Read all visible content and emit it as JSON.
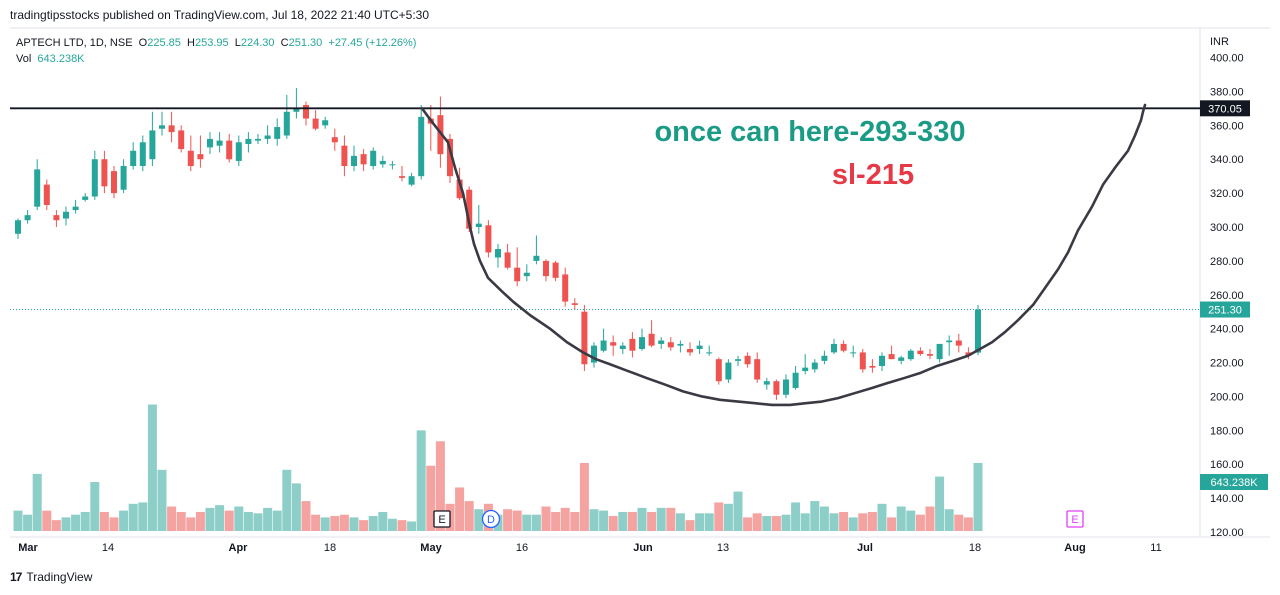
{
  "header": {
    "publisher": "tradingtipsstocks published on TradingView.com, Jul 18, 2022 21:40 UTC+5:30"
  },
  "legend": {
    "symbol": "APTECH LTD, 1D, NSE",
    "open_label": "O",
    "open": "225.85",
    "high_label": "H",
    "high": "253.95",
    "low_label": "L",
    "low": "224.30",
    "close_label": "C",
    "close": "251.30",
    "change": "+27.45 (+12.26%)",
    "volume_label": "Vol",
    "volume": "643.238K"
  },
  "footer": {
    "brand": "TradingView"
  },
  "chart_data": {
    "type": "candlestick",
    "currency": "INR",
    "y_ticks": [
      "400.00",
      "380.00",
      "360.00",
      "340.00",
      "320.00",
      "300.00",
      "280.00",
      "260.00",
      "240.00",
      "220.00",
      "200.00",
      "180.00",
      "160.00",
      "140.00",
      "120.00"
    ],
    "x_ticks": [
      "Mar",
      "14",
      "Apr",
      "18",
      "May",
      "16",
      "Jun",
      "13",
      "Jul",
      "18",
      "Aug",
      "11"
    ],
    "resistance_line": {
      "price": 370.05,
      "label": "370.05"
    },
    "last_price": {
      "price": 251.3,
      "label": "251.30"
    },
    "volume_badge": "643.238K",
    "annotations": {
      "target": "once can here-293-330",
      "stoploss": "sl-215"
    },
    "event_markers": [
      "E",
      "D",
      "E"
    ],
    "colors": {
      "up": "#26a69a",
      "down": "#ef5350",
      "up_volume": "#8dcfc8",
      "down_volume": "#f5a3a1",
      "target_text": "#1a9b86",
      "sl_text": "#e53946",
      "line": "#131722"
    },
    "candles": [
      {
        "o": 296,
        "h": 305,
        "l": 293,
        "c": 304
      },
      {
        "o": 304,
        "h": 310,
        "l": 302,
        "c": 307
      },
      {
        "o": 312,
        "h": 340,
        "l": 310,
        "c": 334
      },
      {
        "o": 325,
        "h": 328,
        "l": 310,
        "c": 313
      },
      {
        "o": 307,
        "h": 310,
        "l": 300,
        "c": 304
      },
      {
        "o": 305,
        "h": 312,
        "l": 301,
        "c": 309
      },
      {
        "o": 310,
        "h": 316,
        "l": 308,
        "c": 312
      },
      {
        "o": 316,
        "h": 320,
        "l": 315,
        "c": 318
      },
      {
        "o": 318,
        "h": 345,
        "l": 316,
        "c": 340
      },
      {
        "o": 340,
        "h": 345,
        "l": 320,
        "c": 324
      },
      {
        "o": 333,
        "h": 336,
        "l": 317,
        "c": 320
      },
      {
        "o": 322,
        "h": 340,
        "l": 320,
        "c": 336
      },
      {
        "o": 336,
        "h": 350,
        "l": 334,
        "c": 345
      },
      {
        "o": 336,
        "h": 354,
        "l": 333,
        "c": 350
      },
      {
        "o": 340,
        "h": 368,
        "l": 336,
        "c": 357
      },
      {
        "o": 358,
        "h": 368,
        "l": 354,
        "c": 360
      },
      {
        "o": 360,
        "h": 368,
        "l": 350,
        "c": 356
      },
      {
        "o": 357,
        "h": 360,
        "l": 344,
        "c": 346
      },
      {
        "o": 345,
        "h": 354,
        "l": 333,
        "c": 336
      },
      {
        "o": 343,
        "h": 354,
        "l": 335,
        "c": 340
      },
      {
        "o": 347,
        "h": 356,
        "l": 343,
        "c": 352
      },
      {
        "o": 348,
        "h": 356,
        "l": 344,
        "c": 351
      },
      {
        "o": 351,
        "h": 355,
        "l": 338,
        "c": 340
      },
      {
        "o": 339,
        "h": 354,
        "l": 336,
        "c": 350
      },
      {
        "o": 349,
        "h": 356,
        "l": 344,
        "c": 352
      },
      {
        "o": 351,
        "h": 355,
        "l": 349,
        "c": 352
      },
      {
        "o": 352,
        "h": 360,
        "l": 349,
        "c": 354
      },
      {
        "o": 352,
        "h": 364,
        "l": 348,
        "c": 359
      },
      {
        "o": 354,
        "h": 378,
        "l": 352,
        "c": 368
      },
      {
        "o": 368,
        "h": 382,
        "l": 364,
        "c": 370
      },
      {
        "o": 372,
        "h": 374,
        "l": 360,
        "c": 364
      },
      {
        "o": 364,
        "h": 369,
        "l": 357,
        "c": 358
      },
      {
        "o": 360,
        "h": 365,
        "l": 358,
        "c": 363
      },
      {
        "o": 353,
        "h": 358,
        "l": 345,
        "c": 350
      },
      {
        "o": 348,
        "h": 354,
        "l": 330,
        "c": 336
      },
      {
        "o": 336,
        "h": 348,
        "l": 333,
        "c": 342
      },
      {
        "o": 343,
        "h": 346,
        "l": 333,
        "c": 337
      },
      {
        "o": 336,
        "h": 347,
        "l": 334,
        "c": 345
      },
      {
        "o": 337,
        "h": 342,
        "l": 335,
        "c": 339
      },
      {
        "o": 337,
        "h": 339,
        "l": 334,
        "c": 337
      },
      {
        "o": 330,
        "h": 336,
        "l": 327,
        "c": 329
      },
      {
        "o": 325,
        "h": 332,
        "l": 324,
        "c": 330
      },
      {
        "o": 330,
        "h": 372,
        "l": 328,
        "c": 365
      },
      {
        "o": 364,
        "h": 372,
        "l": 345,
        "c": 361
      },
      {
        "o": 366,
        "h": 377,
        "l": 335,
        "c": 343
      },
      {
        "o": 352,
        "h": 355,
        "l": 326,
        "c": 330
      },
      {
        "o": 328,
        "h": 335,
        "l": 316,
        "c": 317
      },
      {
        "o": 322,
        "h": 324,
        "l": 297,
        "c": 299
      },
      {
        "o": 300,
        "h": 313,
        "l": 296,
        "c": 302
      },
      {
        "o": 301,
        "h": 304,
        "l": 282,
        "c": 285
      },
      {
        "o": 282,
        "h": 290,
        "l": 276,
        "c": 287
      },
      {
        "o": 285,
        "h": 290,
        "l": 275,
        "c": 276
      },
      {
        "o": 276,
        "h": 288,
        "l": 265,
        "c": 268
      },
      {
        "o": 271,
        "h": 278,
        "l": 268,
        "c": 273
      },
      {
        "o": 280,
        "h": 295,
        "l": 278,
        "c": 283
      },
      {
        "o": 280,
        "h": 281,
        "l": 268,
        "c": 271
      },
      {
        "o": 279,
        "h": 280,
        "l": 268,
        "c": 270
      },
      {
        "o": 272,
        "h": 276,
        "l": 253,
        "c": 256
      },
      {
        "o": 255,
        "h": 258,
        "l": 251,
        "c": 254
      },
      {
        "o": 250,
        "h": 254,
        "l": 215,
        "c": 219
      },
      {
        "o": 220,
        "h": 232,
        "l": 217,
        "c": 230
      },
      {
        "o": 227,
        "h": 240,
        "l": 226,
        "c": 233
      },
      {
        "o": 232,
        "h": 236,
        "l": 224,
        "c": 230
      },
      {
        "o": 228,
        "h": 232,
        "l": 225,
        "c": 230
      },
      {
        "o": 234,
        "h": 238,
        "l": 223,
        "c": 227
      },
      {
        "o": 228,
        "h": 240,
        "l": 227,
        "c": 235
      },
      {
        "o": 237,
        "h": 245,
        "l": 229,
        "c": 230
      },
      {
        "o": 231,
        "h": 235,
        "l": 228,
        "c": 233
      },
      {
        "o": 232,
        "h": 235,
        "l": 227,
        "c": 229
      },
      {
        "o": 230,
        "h": 233,
        "l": 226,
        "c": 231
      },
      {
        "o": 228,
        "h": 232,
        "l": 224,
        "c": 226
      },
      {
        "o": 228,
        "h": 233,
        "l": 225,
        "c": 230
      },
      {
        "o": 226,
        "h": 230,
        "l": 224,
        "c": 226
      },
      {
        "o": 222,
        "h": 223,
        "l": 207,
        "c": 209
      },
      {
        "o": 210,
        "h": 222,
        "l": 208,
        "c": 220
      },
      {
        "o": 221,
        "h": 224,
        "l": 218,
        "c": 222
      },
      {
        "o": 224,
        "h": 226,
        "l": 217,
        "c": 219
      },
      {
        "o": 222,
        "h": 226,
        "l": 208,
        "c": 210
      },
      {
        "o": 207,
        "h": 211,
        "l": 204,
        "c": 209
      },
      {
        "o": 209,
        "h": 210,
        "l": 198,
        "c": 201
      },
      {
        "o": 201,
        "h": 213,
        "l": 199,
        "c": 210
      },
      {
        "o": 205,
        "h": 218,
        "l": 204,
        "c": 214
      },
      {
        "o": 215,
        "h": 225,
        "l": 213,
        "c": 217
      },
      {
        "o": 216,
        "h": 222,
        "l": 214,
        "c": 220
      },
      {
        "o": 221,
        "h": 227,
        "l": 219,
        "c": 224
      },
      {
        "o": 226,
        "h": 234,
        "l": 225,
        "c": 231
      },
      {
        "o": 231,
        "h": 233,
        "l": 226,
        "c": 227
      },
      {
        "o": 226,
        "h": 230,
        "l": 223,
        "c": 226
      },
      {
        "o": 226,
        "h": 228,
        "l": 214,
        "c": 216
      },
      {
        "o": 218,
        "h": 222,
        "l": 214,
        "c": 217
      },
      {
        "o": 218,
        "h": 226,
        "l": 215,
        "c": 224
      },
      {
        "o": 225,
        "h": 230,
        "l": 222,
        "c": 222
      },
      {
        "o": 221,
        "h": 224,
        "l": 219,
        "c": 223
      },
      {
        "o": 222,
        "h": 228,
        "l": 221,
        "c": 227
      },
      {
        "o": 227,
        "h": 229,
        "l": 224,
        "c": 225
      },
      {
        "o": 225,
        "h": 228,
        "l": 222,
        "c": 224
      },
      {
        "o": 222,
        "h": 231,
        "l": 220,
        "c": 231
      },
      {
        "o": 232,
        "h": 236,
        "l": 224,
        "c": 233
      },
      {
        "o": 233,
        "h": 237,
        "l": 226,
        "c": 230
      },
      {
        "o": 226,
        "h": 229,
        "l": 222,
        "c": 224
      },
      {
        "o": 225.85,
        "h": 253.95,
        "l": 224.3,
        "c": 251.3
      }
    ],
    "volumes": [
      15,
      12,
      42,
      15,
      8,
      10,
      12,
      14,
      36,
      14,
      10,
      15,
      20,
      21,
      93,
      45,
      18,
      14,
      10,
      14,
      17,
      19,
      15,
      18,
      14,
      13,
      17,
      15,
      45,
      35,
      22,
      12,
      10,
      11,
      12,
      10,
      8,
      11,
      14,
      9,
      8,
      7,
      74,
      48,
      66,
      20,
      32,
      22,
      16,
      20,
      12,
      16,
      15,
      12,
      12,
      18,
      14,
      17,
      14,
      50,
      16,
      15,
      11,
      14,
      14,
      17,
      14,
      17,
      17,
      13,
      8,
      13,
      13,
      21,
      20,
      29,
      10,
      13,
      11,
      11,
      12,
      21,
      13,
      22,
      18,
      13,
      14,
      10,
      13,
      14,
      20,
      10,
      18,
      15,
      12,
      18,
      40,
      16,
      12,
      10,
      50
    ],
    "curve_points": [
      [
        370,
        422
      ],
      [
        362,
        432
      ],
      [
        350,
        448
      ],
      [
        335,
        455
      ],
      [
        320,
        463
      ],
      [
        300,
        470
      ],
      [
        290,
        474
      ],
      [
        280,
        480
      ],
      [
        270,
        488
      ],
      [
        262,
        502
      ],
      [
        256,
        513
      ],
      [
        248,
        530
      ],
      [
        240,
        550
      ],
      [
        232,
        567
      ],
      [
        226,
        583
      ],
      [
        222,
        596
      ],
      [
        219,
        610
      ],
      [
        215,
        628
      ],
      [
        211,
        646
      ],
      [
        207,
        665
      ],
      [
        203,
        683
      ],
      [
        200,
        702
      ],
      [
        198,
        720
      ],
      [
        197,
        738
      ],
      [
        196,
        755
      ],
      [
        195,
        772
      ],
      [
        195,
        790
      ],
      [
        196,
        806
      ],
      [
        197,
        822
      ],
      [
        199,
        838
      ],
      [
        202,
        855
      ],
      [
        205,
        872
      ],
      [
        208,
        888
      ],
      [
        211,
        905
      ],
      [
        214,
        921
      ],
      [
        218,
        937
      ],
      [
        221,
        953
      ],
      [
        224,
        968
      ],
      [
        228,
        980
      ],
      [
        232,
        992
      ],
      [
        238,
        1005
      ],
      [
        245,
        1018
      ],
      [
        254,
        1033
      ],
      [
        264,
        1045
      ],
      [
        275,
        1058
      ],
      [
        285,
        1068
      ],
      [
        298,
        1078
      ],
      [
        312,
        1092
      ],
      [
        325,
        1103
      ],
      [
        335,
        1115
      ],
      [
        345,
        1128
      ],
      [
        354,
        1135
      ],
      [
        363,
        1141
      ],
      [
        368,
        1143
      ],
      [
        372,
        1145
      ]
    ]
  }
}
